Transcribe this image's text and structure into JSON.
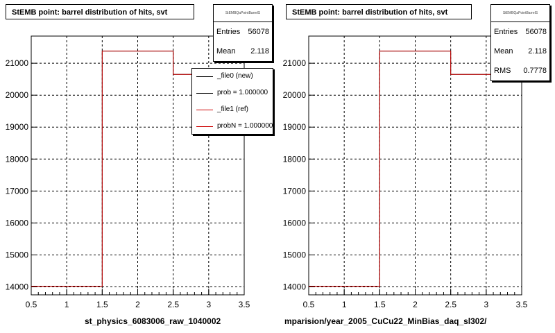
{
  "colors": {
    "new": "#000000",
    "ref": "#cc0000",
    "grid": "#000000"
  },
  "pads": [
    {
      "title": "StEMB point: barrel distribution of hits, svt",
      "caption": "st_physics_6083006_raw_1040002",
      "stats": {
        "name": "StEMBQaPointBarrelS",
        "rows": [
          {
            "label": "Entries",
            "value": "56078"
          },
          {
            "label": "Mean",
            "value": "2.118"
          }
        ]
      },
      "legend": [
        {
          "label": "_file0 (new)",
          "color": "#000000"
        },
        {
          "label": "prob = 1.000000",
          "color": "#000000"
        },
        {
          "label": "_file1 (ref)",
          "color": "#cc0000"
        },
        {
          "label": "probN = 1.000000",
          "color": "#cc0000"
        }
      ]
    },
    {
      "title": "StEMB point: barrel distribution of hits, svt",
      "caption": "mparision/year_2005_CuCu22_MinBias_daq_sl302/",
      "stats": {
        "name": "StEMBQaPointBarrelS",
        "rows": [
          {
            "label": "Entries",
            "value": "56078"
          },
          {
            "label": "Mean",
            "value": "2.118"
          },
          {
            "label": "RMS",
            "value": "0.7778"
          }
        ]
      }
    }
  ],
  "footer": "",
  "chart_data": [
    {
      "type": "line",
      "step": true,
      "x_edges": [
        0.5,
        1.5,
        2.5,
        3.5
      ],
      "series": [
        {
          "name": "_file0 (new)",
          "values": [
            14020,
            21380,
            20650
          ]
        },
        {
          "name": "_file1 (ref)",
          "values": [
            14020,
            21380,
            20650
          ]
        }
      ],
      "xlim": [
        0.5,
        3.5
      ],
      "ylim": [
        13750,
        21850
      ],
      "xticks": [
        0.5,
        1,
        1.5,
        2,
        2.5,
        3,
        3.5
      ],
      "xtick_labels": [
        "0.5",
        "1",
        "1.5",
        "2",
        "2.5",
        "3",
        "3.5"
      ],
      "yticks": [
        14000,
        15000,
        16000,
        17000,
        18000,
        19000,
        20000,
        21000
      ],
      "ytick_labels": [
        "14000",
        "15000",
        "16000",
        "17000",
        "18000",
        "19000",
        "20000",
        "21000"
      ],
      "grid": true,
      "legend": "top-right"
    },
    {
      "type": "line",
      "step": true,
      "x_edges": [
        0.5,
        1.5,
        2.5,
        3.5
      ],
      "series": [
        {
          "name": "_file0 (new)",
          "values": [
            14020,
            21380,
            20650
          ]
        },
        {
          "name": "_file1 (ref)",
          "values": [
            14020,
            21380,
            20650
          ]
        }
      ],
      "xlim": [
        0.5,
        3.5
      ],
      "ylim": [
        13750,
        21850
      ],
      "xticks": [
        0.5,
        1,
        1.5,
        2,
        2.5,
        3,
        3.5
      ],
      "xtick_labels": [
        "0.5",
        "1",
        "1.5",
        "2",
        "2.5",
        "3",
        "3.5"
      ],
      "yticks": [
        14000,
        15000,
        16000,
        17000,
        18000,
        19000,
        20000,
        21000
      ],
      "ytick_labels": [
        "14000",
        "15000",
        "16000",
        "17000",
        "18000",
        "19000",
        "20000",
        "21000"
      ],
      "grid": true
    }
  ]
}
